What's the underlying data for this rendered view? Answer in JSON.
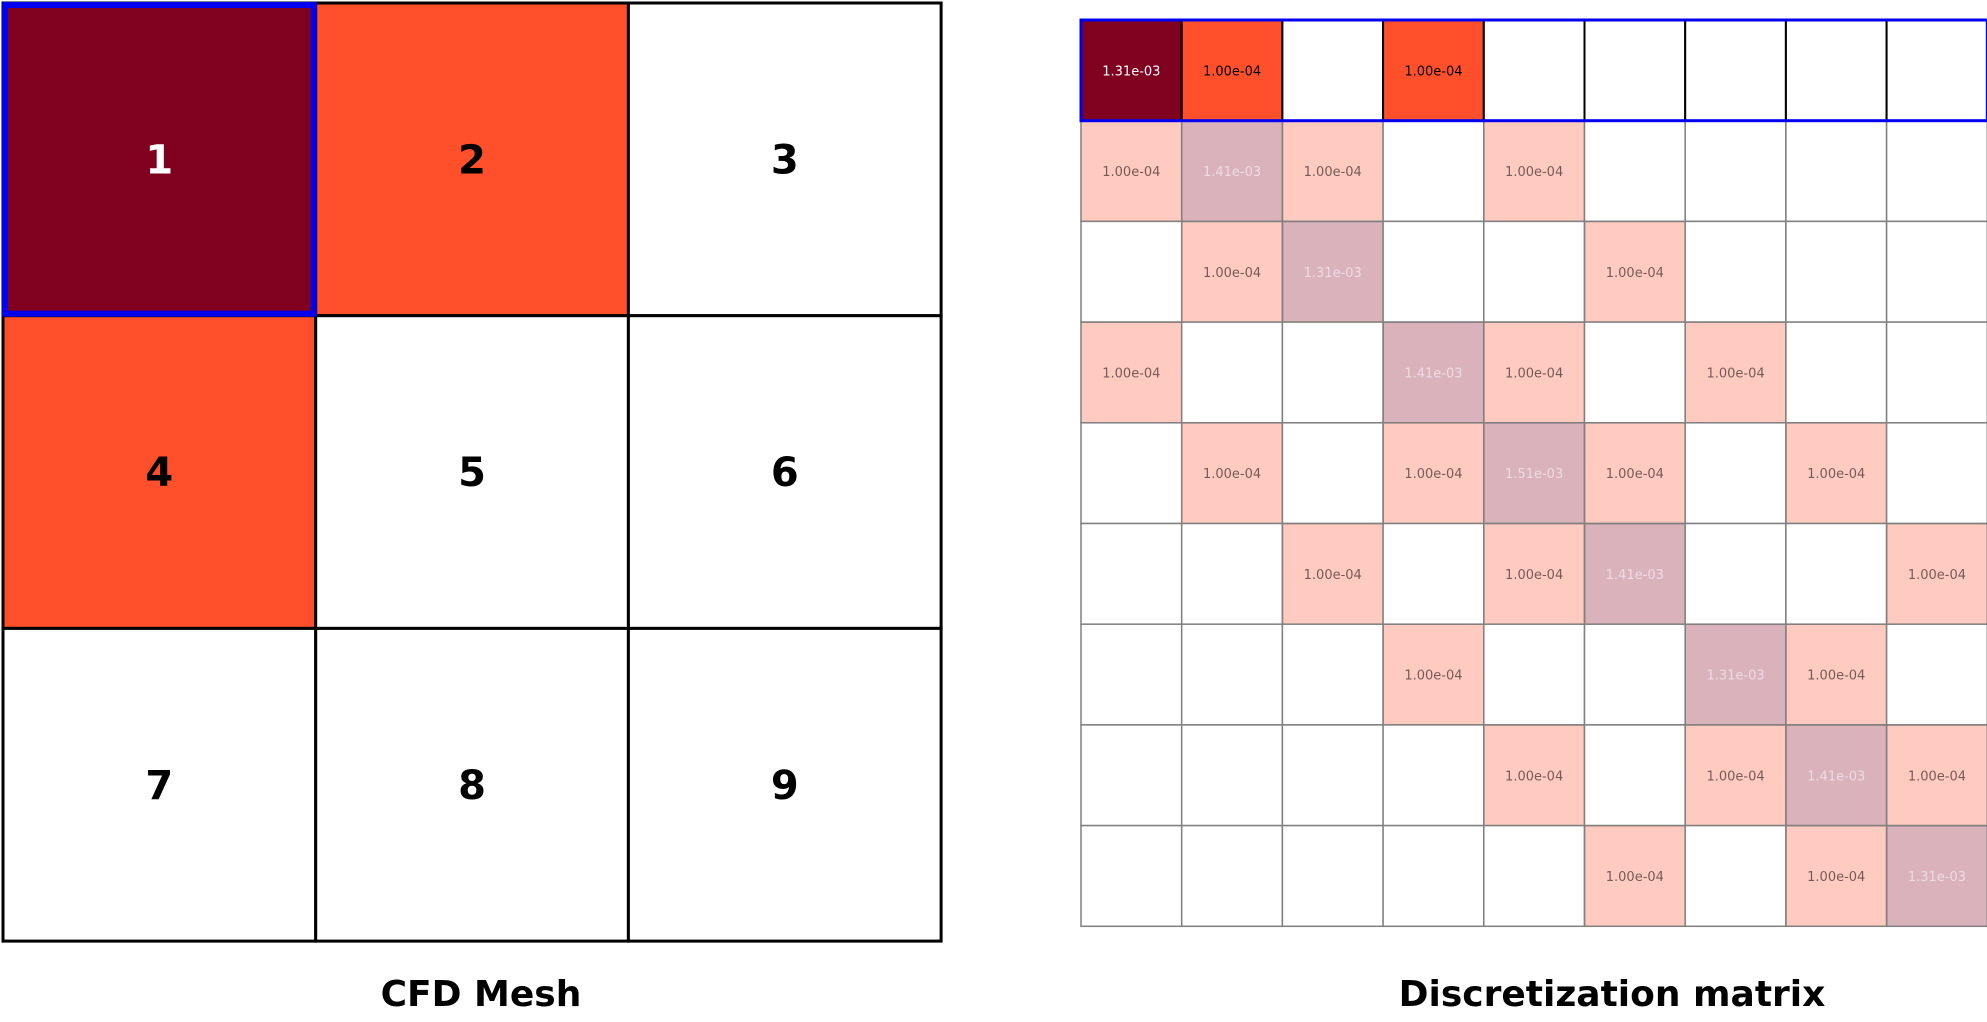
{
  "mesh": {
    "title": "CFD Mesh",
    "rows": 3,
    "cols": 3,
    "cells": [
      {
        "label": "1",
        "role": "focus"
      },
      {
        "label": "2",
        "role": "neighbor"
      },
      {
        "label": "3",
        "role": "none"
      },
      {
        "label": "4",
        "role": "neighbor"
      },
      {
        "label": "5",
        "role": "none"
      },
      {
        "label": "6",
        "role": "none"
      },
      {
        "label": "7",
        "role": "none"
      },
      {
        "label": "8",
        "role": "none"
      },
      {
        "label": "9",
        "role": "none"
      }
    ],
    "highlight_cell": 0
  },
  "matrix": {
    "title": "Discretization matrix",
    "size": 9,
    "highlight_row": 0,
    "entries": [
      [
        "1.31e-03",
        "1.00e-04",
        "",
        "1.00e-04",
        "",
        "",
        "",
        "",
        ""
      ],
      [
        "1.00e-04",
        "1.41e-03",
        "1.00e-04",
        "",
        "1.00e-04",
        "",
        "",
        "",
        ""
      ],
      [
        "",
        "1.00e-04",
        "1.31e-03",
        "",
        "",
        "1.00e-04",
        "",
        "",
        ""
      ],
      [
        "1.00e-04",
        "",
        "",
        "1.41e-03",
        "1.00e-04",
        "",
        "1.00e-04",
        "",
        ""
      ],
      [
        "",
        "1.00e-04",
        "",
        "1.00e-04",
        "1.51e-03",
        "1.00e-04",
        "",
        "1.00e-04",
        ""
      ],
      [
        "",
        "",
        "1.00e-04",
        "",
        "1.00e-04",
        "1.41e-03",
        "",
        "",
        "1.00e-04"
      ],
      [
        "",
        "",
        "",
        "1.00e-04",
        "",
        "",
        "1.31e-03",
        "1.00e-04",
        ""
      ],
      [
        "",
        "",
        "",
        "",
        "1.00e-04",
        "",
        "1.00e-04",
        "1.41e-03",
        "1.00e-04"
      ],
      [
        "",
        "",
        "",
        "",
        "",
        "1.00e-04",
        "",
        "1.00e-04",
        "1.31e-03"
      ]
    ]
  },
  "colors": {
    "diagonal": "#800020",
    "offdiagonal": "#ff4f2b",
    "highlight_border": "#0000ee",
    "grid_line": "#000000",
    "matrix_grid": "#808080",
    "background": "#ffffff"
  }
}
